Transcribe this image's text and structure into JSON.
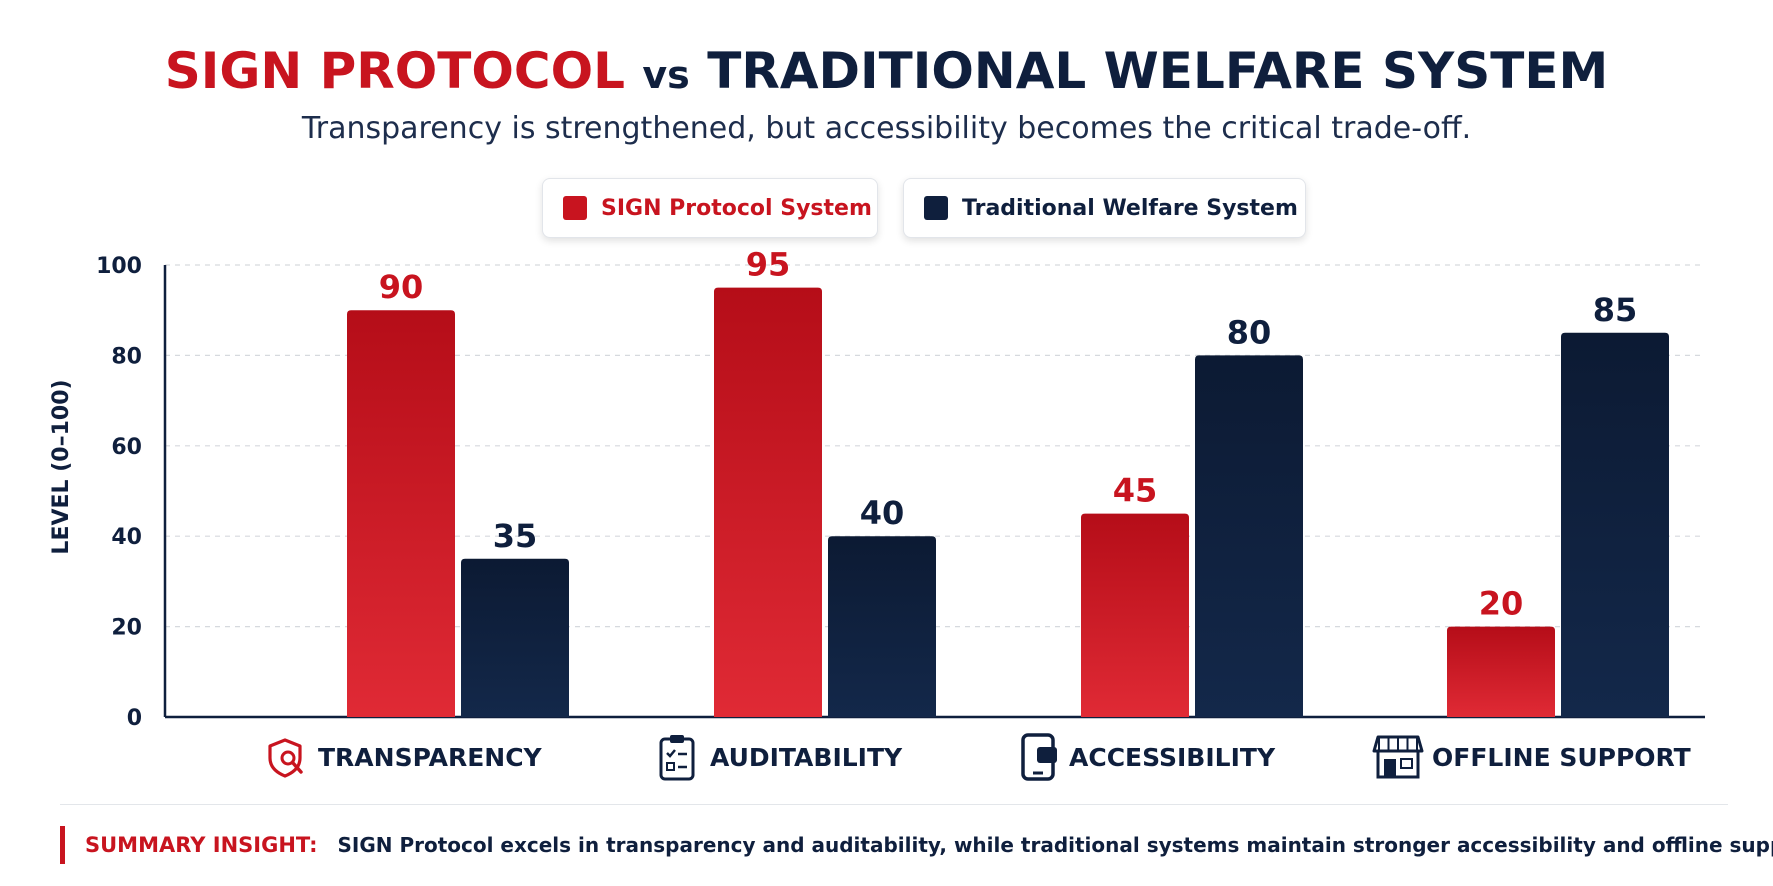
{
  "title": {
    "part1": "SIGN PROTOCOL",
    "part2": "vs",
    "part3": "TRADITIONAL WELFARE SYSTEM"
  },
  "subtitle": "Transparency is strengthened, but accessibility becomes the critical trade-off.",
  "legend": {
    "items": [
      {
        "label": "SIGN Protocol System",
        "color": "#c8141f"
      },
      {
        "label": "Traditional Welfare System",
        "color": "#0f1f3d"
      }
    ]
  },
  "chart_data": {
    "type": "bar",
    "title": "SIGN PROTOCOL vs TRADITIONAL WELFARE SYSTEM",
    "ylabel": "LEVEL (0–100)",
    "xlabel": "",
    "ylim": [
      0,
      100
    ],
    "yticks": [
      0,
      20,
      40,
      60,
      80,
      100
    ],
    "grid": true,
    "legend_position": "top-center",
    "categories": [
      "TRANSPARENCY",
      "AUDITABILITY",
      "ACCESSIBILITY",
      "OFFLINE SUPPORT"
    ],
    "category_icons": [
      "shield-search-icon",
      "clipboard-checklist-icon",
      "mobile-device-icon",
      "storefront-icon"
    ],
    "series": [
      {
        "name": "SIGN Protocol System",
        "color": "#c8141f",
        "values": [
          90,
          95,
          45,
          20
        ]
      },
      {
        "name": "Traditional Welfare System",
        "color": "#0f1f3d",
        "values": [
          35,
          40,
          80,
          85
        ]
      }
    ]
  },
  "summary": {
    "label": "SUMMARY INSIGHT:",
    "text": "SIGN Protocol excels in transparency and auditability, while traditional systems maintain stronger accessibility and offline support."
  }
}
